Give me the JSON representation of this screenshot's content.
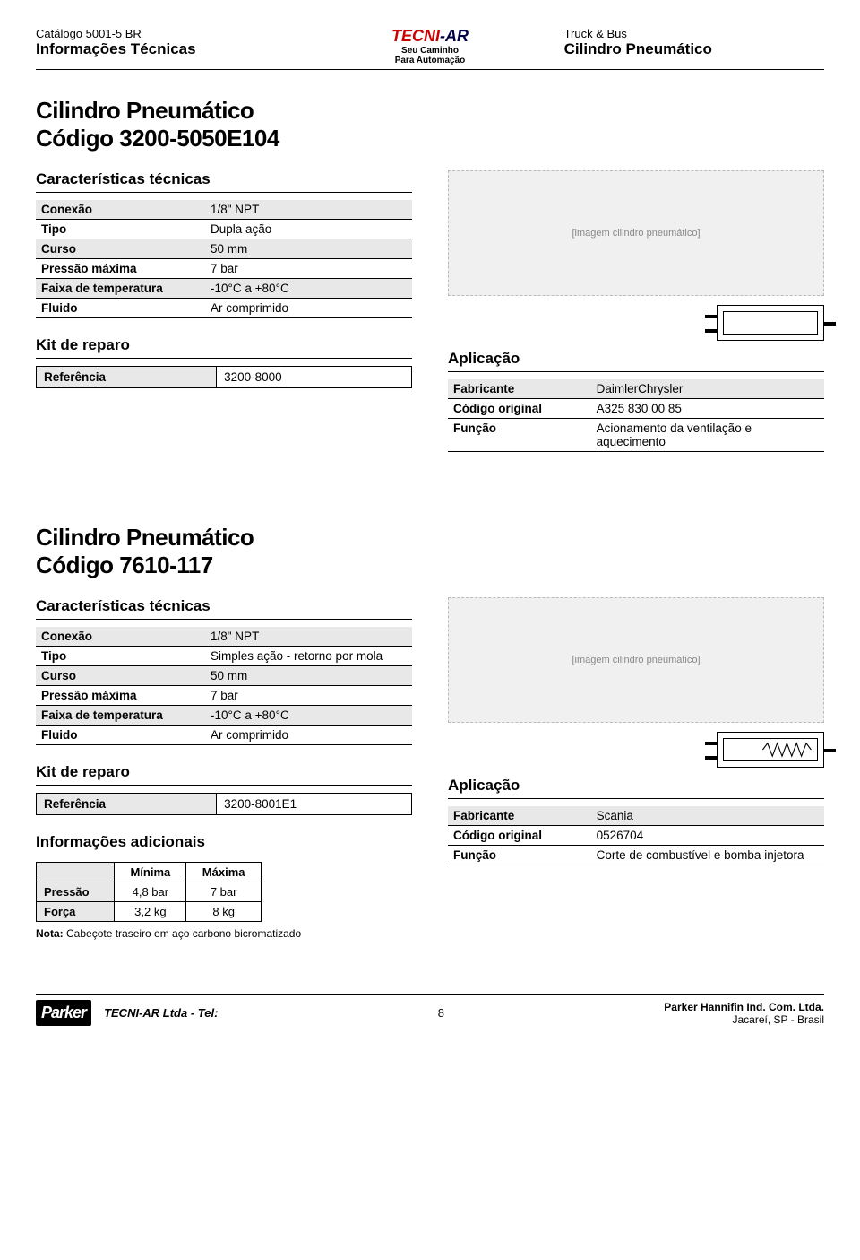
{
  "header": {
    "catalog": "Catálogo 5001-5 BR",
    "info_tec": "Informações Técnicas",
    "logo": {
      "t1": "TECNI",
      "t2": "-AR",
      "sub1": "Seu Caminho",
      "sub2": "Para Automação",
      "color1": "#c00000",
      "color2": "#000080"
    },
    "right1": "Truck & Bus",
    "right2": "Cilindro Pneumático"
  },
  "products": [
    {
      "title": "Cilindro Pneumático",
      "code": "Código 3200-5050E104",
      "specs_heading": "Características técnicas",
      "specs": [
        {
          "k": "Conexão",
          "v": "1/8\" NPT"
        },
        {
          "k": "Tipo",
          "v": "Dupla ação"
        },
        {
          "k": "Curso",
          "v": "50 mm"
        },
        {
          "k": "Pressão máxima",
          "v": "7 bar"
        },
        {
          "k": "Faixa de temperatura",
          "v": "-10°C a +80°C"
        },
        {
          "k": "Fluido",
          "v": "Ar comprimido"
        }
      ],
      "kit_heading": "Kit de reparo",
      "ref": {
        "k": "Referência",
        "v": "3200-8000"
      },
      "app_heading": "Aplicação",
      "app": [
        {
          "k": "Fabricante",
          "v": "DaimlerChrysler"
        },
        {
          "k": "Código original",
          "v": "A325 830 00 85"
        },
        {
          "k": "Função",
          "v": "Acionamento da ventilação e aquecimento"
        }
      ],
      "has_spring": false,
      "has_info": false,
      "img_label": "[imagem cilindro pneumático]"
    },
    {
      "title": "Cilindro Pneumático",
      "code": "Código 7610-117",
      "specs_heading": "Características técnicas",
      "specs": [
        {
          "k": "Conexão",
          "v": "1/8\" NPT"
        },
        {
          "k": "Tipo",
          "v": "Simples ação - retorno por mola"
        },
        {
          "k": "Curso",
          "v": "50 mm"
        },
        {
          "k": "Pressão máxima",
          "v": "7 bar"
        },
        {
          "k": "Faixa de temperatura",
          "v": "-10°C a +80°C"
        },
        {
          "k": "Fluido",
          "v": "Ar comprimido"
        }
      ],
      "kit_heading": "Kit de reparo",
      "ref": {
        "k": "Referência",
        "v": "3200-8001E1"
      },
      "app_heading": "Aplicação",
      "app": [
        {
          "k": "Fabricante",
          "v": "Scania"
        },
        {
          "k": "Código original",
          "v": "0526704"
        },
        {
          "k": "Função",
          "v": "Corte de combustível e bomba injetora"
        }
      ],
      "has_spring": true,
      "has_info": true,
      "info_heading": "Informações adicionais",
      "info_table": {
        "cols": [
          "",
          "Mínima",
          "Máxima"
        ],
        "rows": [
          [
            "Pressão",
            "4,8 bar",
            "7 bar"
          ],
          [
            "Força",
            "3,2 kg",
            "8 kg"
          ]
        ]
      },
      "note_label": "Nota:",
      "note_text": "Cabeçote traseiro em aço carbono bicromatizado",
      "img_label": "[imagem cilindro pneumático]"
    }
  ],
  "footer": {
    "parker": "Parker",
    "tecni": "TECNI-AR Ltda - Tel:",
    "page": "8",
    "right1": "Parker Hannifin Ind. Com. Ltda.",
    "right2": "Jacareí, SP - Brasil"
  }
}
